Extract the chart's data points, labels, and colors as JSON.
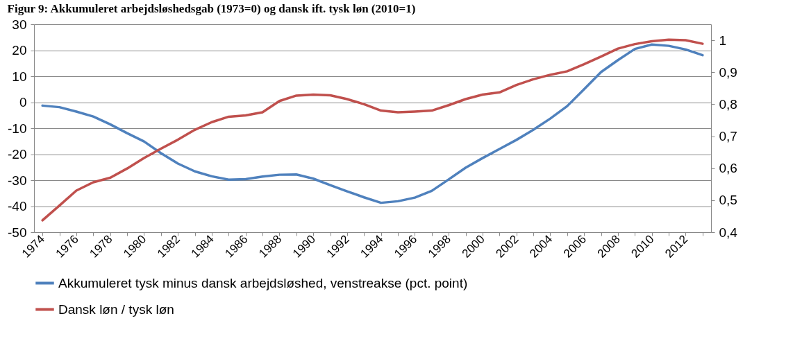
{
  "chart_data": {
    "type": "line",
    "title": "Figur 9: Akkumuleret arbejdsløshedsgab (1973=0) og dansk ift. tysk løn (2010=1)",
    "categories": [
      "1974",
      null,
      "1976",
      null,
      "1978",
      null,
      "1980",
      null,
      "1982",
      null,
      "1984",
      null,
      "1986",
      null,
      "1988",
      null,
      "1990",
      null,
      "1992",
      null,
      "1994",
      null,
      "1996",
      null,
      "1998",
      null,
      "2000",
      null,
      "2002",
      null,
      "2004",
      null,
      "2006",
      null,
      "2008",
      null,
      "2010",
      null,
      "2012",
      null
    ],
    "series": [
      {
        "name": "Akkumuleret tysk minus dansk arbejdsløshed, venstreakse (pct. point)",
        "color": "#4f81bd",
        "values": [
          -1.3,
          -1.9,
          -3.6,
          -5.5,
          -8.5,
          -11.9,
          -15.1,
          -19.6,
          -23.6,
          -26.6,
          -28.5,
          -29.8,
          -29.6,
          -28.6,
          -27.9,
          -27.8,
          -29.4,
          -31.9,
          -34.3,
          -36.6,
          -38.7,
          -38.1,
          -36.7,
          -34.1,
          -29.7,
          -25.2,
          -21.5,
          -18.0,
          -14.5,
          -10.6,
          -6.3,
          -1.5,
          5.0,
          11.6,
          16.2,
          20.5,
          22.2,
          21.7,
          20.3,
          18.1
        ]
      },
      {
        "name": "Dansk løn / tysk løn",
        "color": "#c0504d",
        "axis": "y2",
        "values": [
          0.437,
          0.483,
          0.53,
          0.556,
          0.57,
          0.599,
          0.632,
          0.661,
          0.689,
          0.72,
          0.744,
          0.761,
          0.765,
          0.775,
          0.81,
          0.827,
          0.83,
          0.828,
          0.816,
          0.8,
          0.78,
          0.775,
          0.777,
          0.78,
          0.797,
          0.816,
          0.83,
          0.837,
          0.86,
          0.878,
          0.892,
          0.903,
          0.925,
          0.949,
          0.974,
          0.988,
          0.997,
          1.002,
          1.0,
          0.989
        ]
      }
    ],
    "ylim": [
      -50,
      30
    ],
    "yticks": [
      -50,
      -40,
      -30,
      -20,
      -10,
      0,
      10,
      20,
      30
    ],
    "y2lim": [
      0.4,
      1.05
    ],
    "y2ticks": [
      {
        "value": 0.4,
        "label": "0,4"
      },
      {
        "value": 0.5,
        "label": "0,5"
      },
      {
        "value": 0.6,
        "label": "0,6"
      },
      {
        "value": 0.7,
        "label": "0,7"
      },
      {
        "value": 0.8,
        "label": "0,8"
      },
      {
        "value": 0.9,
        "label": "0,9"
      },
      1
    ],
    "grid": "y",
    "legend": "bottom",
    "line_style": "solid"
  }
}
